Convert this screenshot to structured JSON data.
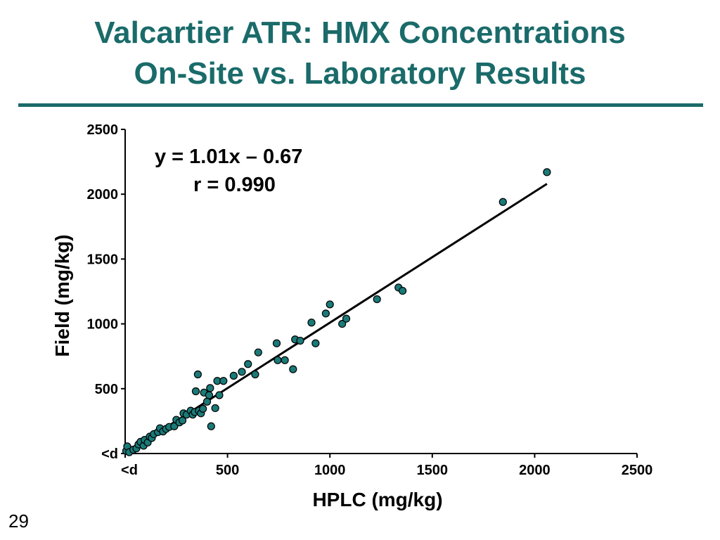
{
  "slide": {
    "title_line1": "Valcartier ATR: HMX Concentrations",
    "title_line2": "On-Site vs. Laboratory Results",
    "page_number": "29"
  },
  "chart_data": {
    "type": "scatter",
    "xlabel": "HPLC (mg/kg)",
    "ylabel": "Field (mg/kg)",
    "xlim": [
      0,
      2500
    ],
    "ylim": [
      0,
      2500
    ],
    "x_ticks": [
      {
        "value": 0,
        "label": "<d"
      },
      {
        "value": 500,
        "label": "500"
      },
      {
        "value": 1000,
        "label": "1000"
      },
      {
        "value": 1500,
        "label": "1500"
      },
      {
        "value": 2000,
        "label": "2000"
      },
      {
        "value": 2500,
        "label": "2500"
      }
    ],
    "y_ticks": [
      {
        "value": 0,
        "label": "<d"
      },
      {
        "value": 500,
        "label": "500"
      },
      {
        "value": 1000,
        "label": "1000"
      },
      {
        "value": 1500,
        "label": "1500"
      },
      {
        "value": 2000,
        "label": "2000"
      },
      {
        "value": 2500,
        "label": "2500"
      }
    ],
    "annotations": [
      "y = 1.01x – 0.67",
      "r = 0.990"
    ],
    "marker_color": "#1a7a78",
    "fit_line": {
      "slope": 1.01,
      "intercept": -0.67,
      "x_range": [
        0,
        2060
      ]
    },
    "series": [
      {
        "points": [
          [
            5,
            20
          ],
          [
            10,
            55
          ],
          [
            20,
            10
          ],
          [
            40,
            30
          ],
          [
            55,
            40
          ],
          [
            65,
            70
          ],
          [
            75,
            90
          ],
          [
            90,
            60
          ],
          [
            95,
            105
          ],
          [
            110,
            85
          ],
          [
            120,
            130
          ],
          [
            130,
            120
          ],
          [
            140,
            150
          ],
          [
            160,
            165
          ],
          [
            170,
            195
          ],
          [
            185,
            170
          ],
          [
            200,
            190
          ],
          [
            215,
            205
          ],
          [
            240,
            210
          ],
          [
            250,
            260
          ],
          [
            265,
            240
          ],
          [
            280,
            255
          ],
          [
            285,
            310
          ],
          [
            300,
            300
          ],
          [
            320,
            330
          ],
          [
            330,
            300
          ],
          [
            340,
            320
          ],
          [
            345,
            480
          ],
          [
            355,
            610
          ],
          [
            360,
            330
          ],
          [
            370,
            310
          ],
          [
            380,
            345
          ],
          [
            385,
            470
          ],
          [
            400,
            400
          ],
          [
            410,
            450
          ],
          [
            415,
            505
          ],
          [
            420,
            210
          ],
          [
            440,
            350
          ],
          [
            450,
            560
          ],
          [
            460,
            450
          ],
          [
            480,
            560
          ],
          [
            530,
            600
          ],
          [
            570,
            630
          ],
          [
            600,
            690
          ],
          [
            635,
            610
          ],
          [
            650,
            780
          ],
          [
            740,
            850
          ],
          [
            745,
            720
          ],
          [
            780,
            720
          ],
          [
            820,
            650
          ],
          [
            830,
            880
          ],
          [
            855,
            870
          ],
          [
            910,
            1010
          ],
          [
            930,
            850
          ],
          [
            980,
            1080
          ],
          [
            1000,
            1150
          ],
          [
            1060,
            1000
          ],
          [
            1080,
            1040
          ],
          [
            1230,
            1190
          ],
          [
            1335,
            1280
          ],
          [
            1355,
            1255
          ],
          [
            1845,
            1940
          ],
          [
            2060,
            2170
          ]
        ]
      }
    ]
  }
}
